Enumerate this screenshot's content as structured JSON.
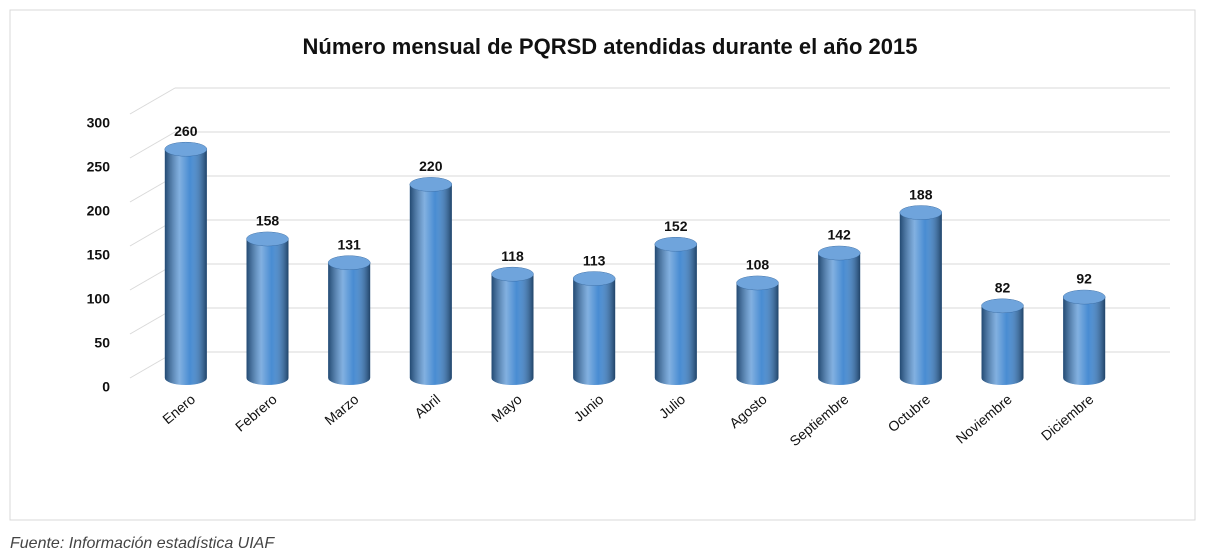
{
  "chart_data": {
    "type": "bar",
    "title": "Número mensual de PQRSD atendidas durante el año 2015",
    "categories": [
      "Enero",
      "Febrero",
      "Marzo",
      "Abril",
      "Mayo",
      "Junio",
      "Julio",
      "Agosto",
      "Septiembre",
      "Octubre",
      "Noviembre",
      "Diciembre"
    ],
    "values": [
      260,
      158,
      131,
      220,
      118,
      113,
      152,
      108,
      142,
      188,
      82,
      92
    ],
    "color": "#3f86d0",
    "ylim": [
      0,
      300
    ],
    "yticks": [
      0,
      50,
      100,
      150,
      200,
      250,
      300
    ],
    "grid": true
  },
  "caption": "Fuente: Información estadística UIAF"
}
